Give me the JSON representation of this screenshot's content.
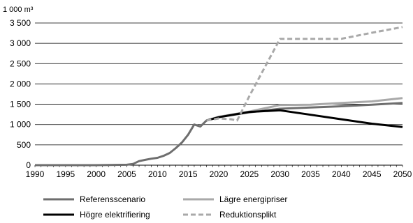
{
  "chart_data": {
    "type": "line",
    "unit_label": "1 000 m³",
    "title": "",
    "xlabel": "",
    "ylabel": "",
    "xlim": [
      1990,
      2050
    ],
    "ylim": [
      0,
      3500
    ],
    "x_ticks": [
      1990,
      1995,
      2000,
      2005,
      2010,
      2015,
      2020,
      2025,
      2030,
      2035,
      2040,
      2045,
      2050
    ],
    "y_ticks": [
      0,
      500,
      1000,
      1500,
      2000,
      2500,
      3000,
      3500
    ],
    "y_tick_labels": [
      "0",
      "500",
      "1 000",
      "1 500",
      "2 000",
      "2 500",
      "3 000",
      "3 500"
    ],
    "grid": "horizontal",
    "legend_position": "bottom",
    "series": [
      {
        "name": "Referensscenario",
        "color": "#6e6e6e",
        "dash": "solid",
        "x": [
          1990,
          1995,
          2000,
          2005,
          2006,
          2007,
          2008,
          2009,
          2010,
          2011,
          2012,
          2013,
          2014,
          2015,
          2016,
          2017,
          2018,
          2020,
          2025,
          2030,
          2035,
          2040,
          2045,
          2050
        ],
        "y": [
          0,
          0,
          0,
          10,
          30,
          100,
          130,
          160,
          180,
          230,
          300,
          420,
          560,
          750,
          1000,
          950,
          1100,
          1180,
          1300,
          1390,
          1420,
          1450,
          1490,
          1530
        ]
      },
      {
        "name": "Lägre energipriser",
        "color": "#a9a9a9",
        "dash": "solid",
        "x": [
          2018,
          2020,
          2025,
          2030,
          2035,
          2040,
          2045,
          2050
        ],
        "y": [
          1100,
          1190,
          1320,
          1480,
          1490,
          1530,
          1570,
          1650
        ]
      },
      {
        "name": "Högre elektrifiering",
        "color": "#000000",
        "dash": "solid",
        "x": [
          2018,
          2020,
          2025,
          2030,
          2035,
          2040,
          2045,
          2050
        ],
        "y": [
          1100,
          1180,
          1310,
          1350,
          1240,
          1130,
          1020,
          940
        ]
      },
      {
        "name": "Reduktionsplikt",
        "color": "#a9a9a9",
        "dash": "dashed",
        "x": [
          2018,
          2020,
          2022,
          2023,
          2025,
          2030,
          2035,
          2040,
          2045,
          2050
        ],
        "y": [
          1100,
          1150,
          1130,
          1100,
          1700,
          3110,
          3110,
          3110,
          3260,
          3400
        ]
      }
    ]
  }
}
